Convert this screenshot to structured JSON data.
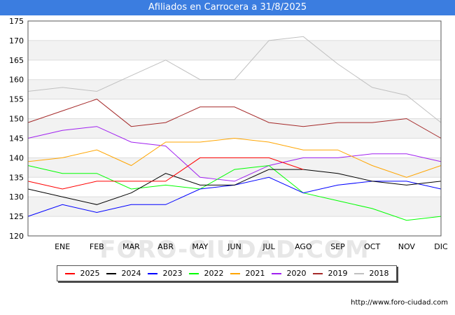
{
  "title": "Afiliados en Carrocera a 31/8/2025",
  "watermark": "FORO-CIUDAD.COM",
  "credit": "http://www.foro-ciudad.com",
  "chart_data": {
    "type": "line",
    "title": "Afiliados en Carrocera a 31/8/2025",
    "categories": [
      "",
      "ENE",
      "FEB",
      "MAR",
      "ABR",
      "MAY",
      "JUN",
      "JUL",
      "AGO",
      "SEP",
      "OCT",
      "NOV",
      "DIC"
    ],
    "ylim": [
      120,
      175
    ],
    "yticks": [
      120,
      125,
      130,
      135,
      140,
      145,
      150,
      155,
      160,
      165,
      170,
      175
    ],
    "grid": true,
    "legend_position": "bottom",
    "series": [
      {
        "name": "2018",
        "color": "#c0c0c0",
        "values": [
          157,
          158,
          157,
          161,
          165,
          160,
          160,
          170,
          171,
          164,
          158,
          156,
          149
        ]
      },
      {
        "name": "2019",
        "color": "#a52a2a",
        "values": [
          149,
          152,
          155,
          148,
          149,
          153,
          153,
          149,
          148,
          149,
          149,
          150,
          145
        ]
      },
      {
        "name": "2020",
        "color": "#a020f0",
        "values": [
          145,
          147,
          148,
          144,
          143,
          135,
          134,
          138,
          140,
          140,
          141,
          141,
          139
        ]
      },
      {
        "name": "2021",
        "color": "#ffa500",
        "values": [
          139,
          140,
          142,
          138,
          144,
          144,
          145,
          144,
          142,
          142,
          138,
          135,
          138
        ]
      },
      {
        "name": "2022",
        "color": "#00ff00",
        "values": [
          138,
          136,
          136,
          132,
          133,
          132,
          137,
          138,
          131,
          129,
          127,
          124,
          125
        ]
      },
      {
        "name": "2023",
        "color": "#0000ff",
        "values": [
          125,
          128,
          126,
          128,
          128,
          132,
          133,
          135,
          131,
          133,
          134,
          134,
          132
        ]
      },
      {
        "name": "2024",
        "color": "#000000",
        "values": [
          132,
          130,
          128,
          131,
          136,
          133,
          133,
          137,
          137,
          136,
          134,
          133,
          134
        ]
      },
      {
        "name": "2025",
        "color": "#ff0000",
        "values": [
          134,
          132,
          134,
          134,
          134,
          140,
          140,
          140,
          137,
          null,
          null,
          null,
          null
        ]
      }
    ],
    "legend": [
      "2025",
      "2024",
      "2023",
      "2022",
      "2021",
      "2020",
      "2019",
      "2018"
    ]
  }
}
